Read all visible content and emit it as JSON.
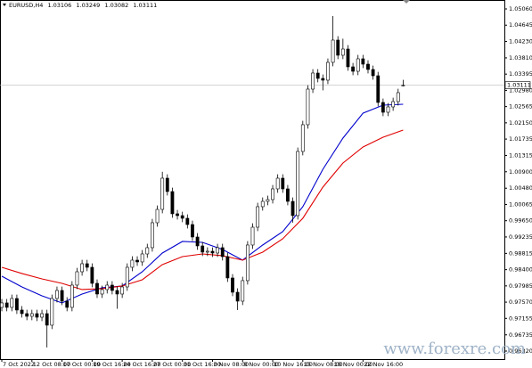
{
  "chart_data": {
    "type": "candlestick",
    "symbol": "EURUSD,H4",
    "open": [
      0.97436,
      0.9755,
      0.97436,
      0.97663,
      0.97368,
      0.97276,
      0.97208,
      0.97276,
      0.97185,
      0.97276,
      0.96981,
      0.97663,
      0.97868,
      0.97595,
      0.97436,
      0.98005,
      0.98346,
      0.98551,
      0.9846,
      0.9805,
      0.97777,
      0.97891,
      0.98005,
      0.97868,
      0.97777,
      0.97959,
      0.9846,
      0.98642,
      0.98597,
      0.98801,
      0.98961,
      0.99598,
      0.99939,
      1.00736,
      1.00395,
      0.99826,
      0.9978,
      0.99712,
      0.99552,
      0.99234,
      0.99006,
      0.98847,
      0.9887,
      0.98824,
      0.98961,
      0.98733,
      0.98187,
      0.97823,
      0.97595,
      0.98119,
      0.99029,
      0.99484,
      1.00008,
      1.00144,
      1.0019,
      1.00463,
      1.00736,
      1.00463,
      1.00144,
      0.9978,
      1.01419,
      1.02102,
      1.03012,
      1.03422,
      1.03285,
      1.0324,
      1.03695,
      1.04264,
      1.03877,
      1.04036,
      1.03581,
      1.03467,
      1.03786,
      1.03649,
      1.03513,
      1.03353,
      1.02671,
      1.0242,
      1.02557,
      1.02693,
      1.03106
    ],
    "high": [
      0.9765,
      0.9765,
      0.97763,
      0.97763,
      0.97468,
      0.97376,
      0.97376,
      0.97376,
      0.97376,
      0.97376,
      0.97763,
      0.97968,
      0.97968,
      0.97695,
      0.98105,
      0.98446,
      0.98651,
      0.98651,
      0.9856,
      0.9815,
      0.97991,
      0.98105,
      0.98105,
      0.97968,
      0.98059,
      0.9856,
      0.98742,
      0.98742,
      0.98901,
      0.99061,
      0.99698,
      1.00039,
      1.009,
      1.00836,
      1.00495,
      0.99926,
      0.9988,
      0.99812,
      0.99652,
      0.99334,
      0.99106,
      0.9897,
      0.9897,
      0.99061,
      0.99061,
      0.98833,
      0.98287,
      0.97923,
      0.98219,
      0.99129,
      0.99584,
      1.00108,
      1.00244,
      1.0029,
      1.00563,
      1.00836,
      1.00836,
      1.00563,
      1.00244,
      1.01519,
      1.02202,
      1.03112,
      1.03522,
      1.03522,
      1.03385,
      1.03795,
      1.04878,
      1.04364,
      1.043,
      1.04136,
      1.03681,
      1.03886,
      1.03886,
      1.03749,
      1.03613,
      1.03453,
      1.02771,
      1.02657,
      1.02793,
      1.03021,
      1.03249
    ],
    "low": [
      0.97336,
      0.97336,
      0.97336,
      0.97268,
      0.97176,
      0.97108,
      0.97108,
      0.97085,
      0.97085,
      0.96412,
      0.96881,
      0.97563,
      0.97495,
      0.97336,
      0.97336,
      0.97905,
      0.98246,
      0.9836,
      0.9795,
      0.97677,
      0.97677,
      0.97791,
      0.97768,
      0.974,
      0.97677,
      0.97859,
      0.9836,
      0.98497,
      0.98497,
      0.98701,
      0.98861,
      0.99498,
      0.99839,
      1.00295,
      0.99726,
      0.9968,
      0.99612,
      0.99452,
      0.99134,
      0.98906,
      0.98747,
      0.98747,
      0.98724,
      0.98724,
      0.98633,
      0.98087,
      0.97723,
      0.97368,
      0.97495,
      0.98019,
      0.98929,
      0.99384,
      0.99908,
      1.00044,
      1.0009,
      1.00363,
      1.00363,
      1.00044,
      0.996,
      0.9968,
      1.01319,
      1.02002,
      1.02912,
      1.03185,
      1.0298,
      1.0314,
      1.03595,
      1.03777,
      1.03777,
      1.03481,
      1.03367,
      1.03367,
      1.03549,
      1.03413,
      1.03253,
      1.02571,
      1.0232,
      1.0232,
      1.02457,
      1.02593,
      1.03082
    ],
    "close": [
      0.9755,
      0.97436,
      0.97663,
      0.97368,
      0.97276,
      0.97208,
      0.97276,
      0.97185,
      0.97276,
      0.96981,
      0.97663,
      0.97868,
      0.97595,
      0.97436,
      0.98005,
      0.98346,
      0.98551,
      0.9846,
      0.9805,
      0.97777,
      0.97891,
      0.98005,
      0.97868,
      0.97777,
      0.97959,
      0.9846,
      0.98642,
      0.98597,
      0.98801,
      0.98961,
      0.99598,
      0.99939,
      1.00736,
      1.00395,
      0.99826,
      0.9978,
      0.99712,
      0.99552,
      0.99234,
      0.99006,
      0.98847,
      0.9887,
      0.98824,
      0.98961,
      0.98733,
      0.98187,
      0.97823,
      0.97595,
      0.98119,
      0.99029,
      0.99484,
      1.00008,
      1.00144,
      1.0019,
      1.00463,
      1.00736,
      1.00463,
      1.00144,
      0.9978,
      1.01419,
      1.02102,
      1.03012,
      1.03422,
      1.03285,
      1.0324,
      1.03695,
      1.04264,
      1.03877,
      1.04036,
      1.03581,
      1.03467,
      1.03786,
      1.03649,
      1.03513,
      1.03353,
      1.02671,
      1.0242,
      1.02557,
      1.02693,
      1.02921,
      1.03111
    ],
    "up_color": "#ffffff",
    "down_color": "#000000",
    "lines": [
      {
        "color": "#0000cc",
        "x": [
          0,
          4,
          8,
          12,
          16,
          20,
          24,
          28,
          32,
          36,
          40,
          44,
          48,
          52,
          56,
          60,
          64,
          68,
          72,
          76,
          80
        ],
        "values": [
          0.98232,
          0.97959,
          0.97732,
          0.9755,
          0.97777,
          0.97937,
          0.97982,
          0.98346,
          0.98824,
          0.9912,
          0.99097,
          0.98915,
          0.98642,
          0.99029,
          0.9937,
          1.00008,
          1.00964,
          1.0176,
          1.02397,
          1.02602,
          1.02625
        ]
      },
      {
        "color": "#e00000",
        "x": [
          0,
          4,
          8,
          12,
          16,
          20,
          24,
          28,
          32,
          36,
          40,
          44,
          48,
          52,
          56,
          60,
          64,
          68,
          72,
          76,
          80
        ],
        "values": [
          0.9846,
          0.98301,
          0.98164,
          0.9805,
          0.97891,
          0.97914,
          0.97982,
          0.98141,
          0.98528,
          0.98733,
          0.98801,
          0.98756,
          0.98642,
          0.98847,
          0.99188,
          0.99712,
          1.00508,
          1.01123,
          1.01533,
          1.01783,
          1.01965
        ]
      }
    ],
    "xlim": [
      -0.36,
      100.18
    ],
    "xticks": [
      {
        "value": 0,
        "label": "7 Oct 2022"
      },
      {
        "value": 6,
        "label": "12 Oct 08:00"
      },
      {
        "value": 12,
        "label": "17 Oct 00:00"
      },
      {
        "value": 18,
        "label": "19 Oct 16:00"
      },
      {
        "value": 24,
        "label": "24 Oct 16:00"
      },
      {
        "value": 30,
        "label": "27 Oct 00:00"
      },
      {
        "value": 36,
        "label": "31 Oct 16:00"
      },
      {
        "value": 42,
        "label": "3 Nov 08:00"
      },
      {
        "value": 48,
        "label": "8 Nov 00:00"
      },
      {
        "value": 54,
        "label": "10 Nov 16:00"
      },
      {
        "value": 60,
        "label": "15 Nov 08:00"
      },
      {
        "value": 66,
        "label": "18 Nov 00:00"
      },
      {
        "value": 72,
        "label": "22 Nov 16:00"
      }
    ],
    "ylim": [
      0.96115,
      1.05288
    ],
    "yticks": [
      {
        "value": 1.0506,
        "label": "1.05060"
      },
      1.04645,
      {
        "value": 1.0423,
        "label": "1.04230"
      },
      {
        "value": 1.0381,
        "label": "1.03810"
      },
      1.03395,
      {
        "value": 1.0298,
        "label": "1.02980"
      },
      1.02565,
      {
        "value": 1.0215,
        "label": "1.02150"
      },
      1.01735,
      1.01315,
      {
        "value": 1.009,
        "label": "1.00900"
      },
      {
        "value": 1.0048,
        "label": "1.00480"
      },
      1.00065,
      {
        "value": 0.9965,
        "label": "0.99650"
      },
      0.99235,
      0.98815,
      {
        "value": 0.984,
        "label": "0.98400"
      },
      0.97985,
      {
        "value": 0.9757,
        "label": "0.97570"
      },
      0.97155,
      0.96735,
      {
        "value": 0.9632,
        "label": "0.96320"
      }
    ],
    "grid": false,
    "watermark": "www.forexre.com"
  }
}
